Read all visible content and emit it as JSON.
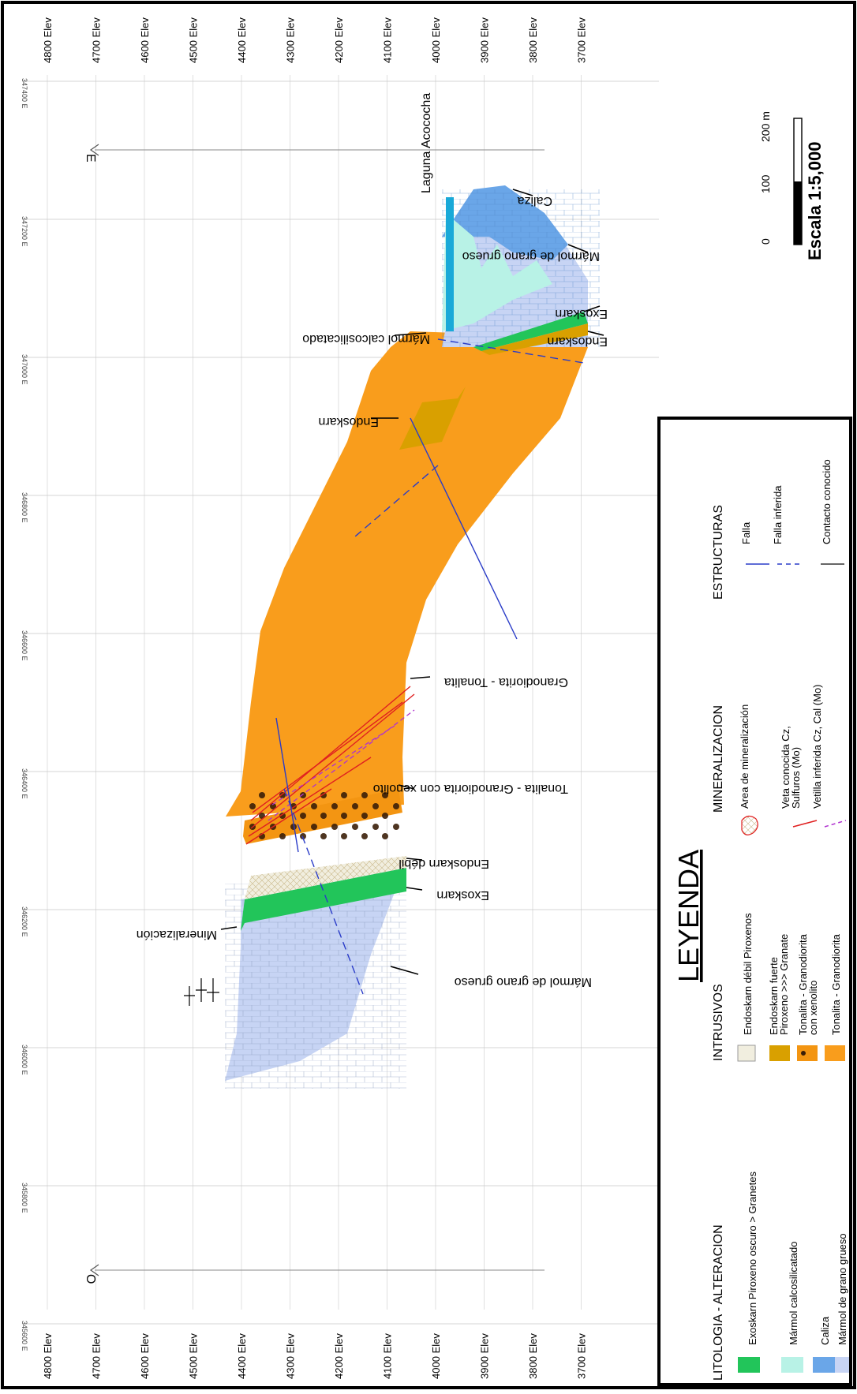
{
  "elevation_labels": [
    "4800 Elev",
    "4700 Elev",
    "4600 Elev",
    "4500 Elev",
    "4400 Elev",
    "4300 Elev",
    "4200 Elev",
    "4100 Elev",
    "4000 Elev",
    "3900 Elev",
    "3800 Elev",
    "3700 Elev"
  ],
  "easting_labels": [
    "345600 E",
    "345800 E",
    "346000 E",
    "346200 E",
    "346400 E",
    "346600 E",
    "346800 E",
    "347000 E",
    "347200 E",
    "347400 E"
  ],
  "direction_labels": {
    "west": "O",
    "east": "E"
  },
  "annotations": {
    "laguna": "Laguna Acococha",
    "caliza": "Caliza",
    "marmol_grueso_top": "Mármol de grano grueso",
    "exoskarn_top": "Exoskarn",
    "endoskarn_top": "Endoskarn",
    "marmol_calcosilicatado": "Mármol calcosilicatado",
    "endoskarn_mid": "Endoskarn",
    "granodiorita_tonalita": "Granodiorita - Tonalita",
    "tonalita_xenolito": "Tonalita - Granodiorita con xenolito",
    "endoskarn_debil": "Endoskarn débil",
    "exoskarn_bottom": "Exoskarn",
    "mineralizacion": "Mineralización",
    "marmol_grueso_bottom": "Mármol de grano grueso"
  },
  "scale": {
    "title": "Escala 1:5,000",
    "ticks": [
      "0",
      "100",
      "200 m"
    ]
  },
  "legend": {
    "title": "LEYENDA",
    "litologia": {
      "title": "LITOLOGIA - ALTERACION",
      "items": [
        {
          "label": "Exoskarn Piroxeno oscuro > Granetes",
          "color": "#22c55a"
        },
        {
          "label": "Mármol calcosilicatado",
          "color": "#b8f2e6"
        },
        {
          "label": "Caliza",
          "color": "#6aa6e8"
        },
        {
          "label": "Mármol de grano grueso",
          "color": "#c7d4f4"
        }
      ]
    },
    "intrusivos": {
      "title": "INTRUSIVOS",
      "items": [
        {
          "label": "Endoskarn débil Piroxenos",
          "color": "#f1eedf"
        },
        {
          "label": "Endoskarn fuerte",
          "label2": "Piroxeno >>> Granate",
          "color": "#d9a000"
        },
        {
          "label": "Tonalita - Granodiorita",
          "label2": "con xenolito",
          "color": "#f39512"
        },
        {
          "label": "Tonalita - Granodiorita",
          "color": "#f99d1c"
        }
      ]
    },
    "mineralizacion": {
      "title": "MINERALIZACION",
      "items": [
        {
          "label": "Area de mineralización"
        },
        {
          "label": "Veta conocida Cz,",
          "label2": "Sulfuros (Mo)",
          "color": "#e02020"
        },
        {
          "label": "Vetilla inferida Cz, Cal (Mo)",
          "color": "#b030d0"
        }
      ]
    },
    "estructuras": {
      "title": "ESTRUCTURAS",
      "items": [
        {
          "label": "Falla",
          "color": "#2a3cc8"
        },
        {
          "label": "Falla inferida",
          "color": "#2a3cc8"
        },
        {
          "label": "Contacto conocido",
          "color": "#333333"
        }
      ]
    }
  }
}
